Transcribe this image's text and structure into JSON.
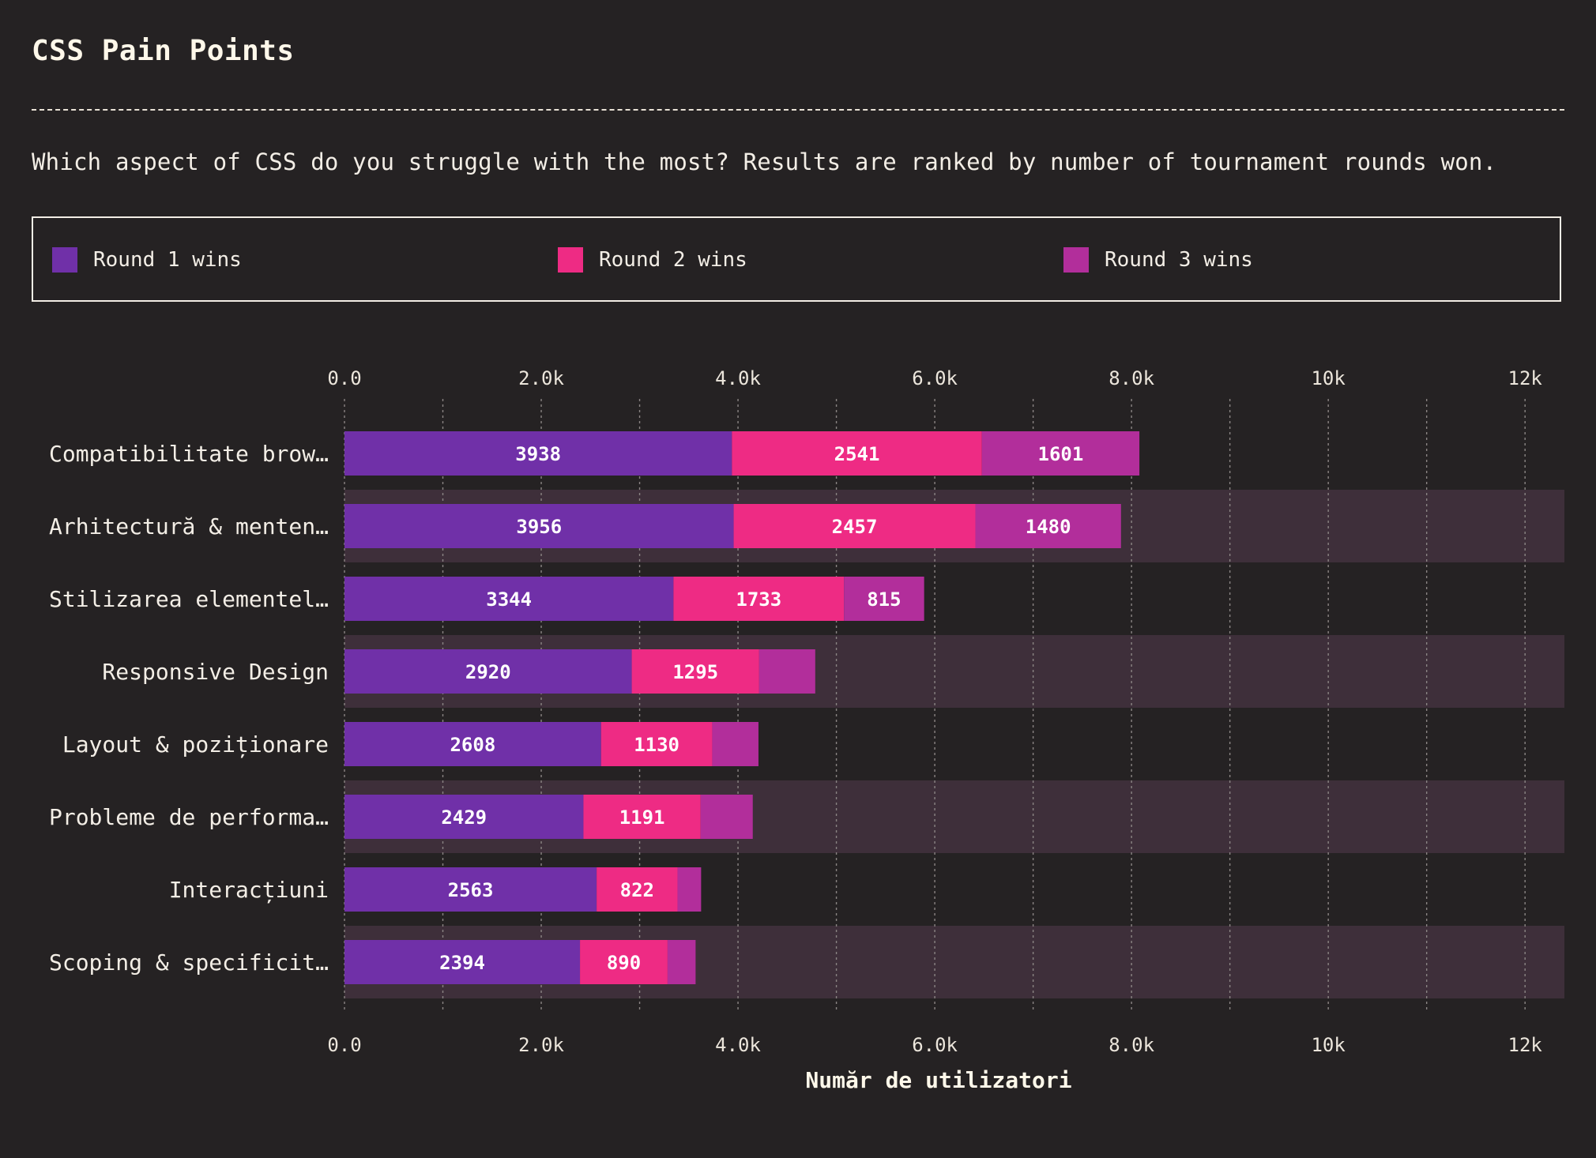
{
  "header": {
    "title": "CSS Pain Points",
    "subtitle": "Which aspect of CSS do you struggle with the most? Results are ranked by number of tournament rounds won."
  },
  "legend": [
    {
      "label": "Round 1 wins",
      "color": "#7030a8"
    },
    {
      "label": "Round 2 wins",
      "color": "#ee2b84"
    },
    {
      "label": "Round 3 wins",
      "color": "#b22e9b"
    }
  ],
  "colors": {
    "background": "#252223",
    "band": "#3e2f3a",
    "grid": "#8a8483",
    "text": "#f3eee6"
  },
  "chart_data": {
    "type": "bar",
    "orientation": "horizontal",
    "stacked": true,
    "categories": [
      "Compatibilitate brow…",
      "Arhitectură & menten…",
      "Stilizarea elementel…",
      "Responsive Design",
      "Layout & poziționare",
      "Probleme de performa…",
      "Interacțiuni",
      "Scoping & specificit…"
    ],
    "series": [
      {
        "name": "Round 1 wins",
        "color": "#7030a8",
        "values": [
          3938,
          3956,
          3344,
          2920,
          2608,
          2429,
          2563,
          2394
        ]
      },
      {
        "name": "Round 2 wins",
        "color": "#ee2b84",
        "values": [
          2541,
          2457,
          1733,
          1295,
          1130,
          1191,
          822,
          890
        ]
      },
      {
        "name": "Round 3 wins",
        "color": "#b22e9b",
        "values": [
          1601,
          1480,
          815,
          570,
          470,
          530,
          240,
          285
        ]
      }
    ],
    "value_labels_min": 700,
    "xlim": [
      0,
      12400
    ],
    "major_ticks": [
      0,
      2000,
      4000,
      6000,
      8000,
      10000,
      12000
    ],
    "minor_ticks": [
      1000,
      3000,
      5000,
      7000,
      9000,
      11000
    ],
    "tick_labels": [
      "0.0",
      "2.0k",
      "4.0k",
      "6.0k",
      "8.0k",
      "10k",
      "12k"
    ],
    "xlabel": "Număr de utilizatori",
    "ylabel": "",
    "grid": true,
    "legend_position": "top"
  }
}
